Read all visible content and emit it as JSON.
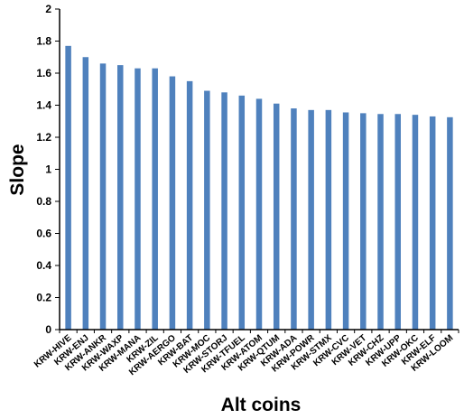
{
  "chart_data": {
    "type": "bar",
    "xlabel": "Alt coins",
    "ylabel": "Slope",
    "ylim": [
      0,
      2
    ],
    "yticks": [
      "0",
      "0.2",
      "0.4",
      "0.6",
      "0.8",
      "1",
      "1.2",
      "1.4",
      "1.6",
      "1.8",
      "2"
    ],
    "categories": [
      "KRW-HIVE",
      "KRW-ENJ",
      "KRW-ANKR",
      "KRW-WAXP",
      "KRW-MANA",
      "KRW-ZIL",
      "KRW-AERGO",
      "KRW-BAT",
      "KRW-MOC",
      "KRW-STORJ",
      "KRW-TFUEL",
      "KRW-ATOM",
      "KRW-QTUM",
      "KRW-ADA",
      "KRW-POWR",
      "KRW-STMX",
      "KRW-CVC",
      "KRW-VET",
      "KRW-CHZ",
      "KRW-UPP",
      "KRW-OKC",
      "KRW-ELF",
      "KRW-LOOM"
    ],
    "values": [
      1.77,
      1.7,
      1.66,
      1.65,
      1.63,
      1.63,
      1.58,
      1.55,
      1.49,
      1.48,
      1.46,
      1.44,
      1.41,
      1.38,
      1.37,
      1.37,
      1.355,
      1.35,
      1.345,
      1.345,
      1.34,
      1.33,
      1.325
    ],
    "bar_color": "#4F81BD",
    "grid": false,
    "legend": "none"
  }
}
